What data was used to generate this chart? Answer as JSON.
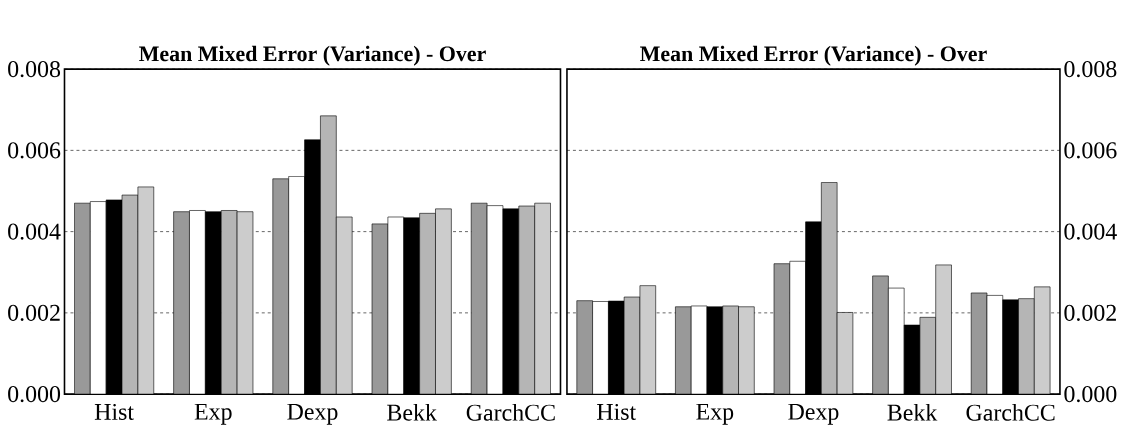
{
  "chart_data": [
    {
      "type": "bar",
      "title": "Mean Mixed Error (Variance) - Over",
      "categories": [
        "Hist",
        "Exp",
        "Dexp",
        "Bekk",
        "GarchCC"
      ],
      "series": [
        {
          "color": "#999999",
          "values": [
            0.0047,
            0.00449,
            0.0053,
            0.00419,
            0.0047
          ]
        },
        {
          "color": "#ffffff",
          "values": [
            0.00474,
            0.00452,
            0.00536,
            0.00436,
            0.00464
          ]
        },
        {
          "color": "#000000",
          "values": [
            0.00478,
            0.00449,
            0.00626,
            0.00434,
            0.00456
          ]
        },
        {
          "color": "#b5b5b5",
          "values": [
            0.0049,
            0.00452,
            0.00685,
            0.00445,
            0.00463
          ]
        },
        {
          "color": "#cccccc",
          "values": [
            0.0051,
            0.00449,
            0.00436,
            0.00456,
            0.0047
          ]
        }
      ],
      "ylim": [
        0,
        0.008
      ],
      "yticks": [
        {
          "value": 0,
          "label": "0.000"
        },
        {
          "value": 0.002,
          "label": "0.002"
        },
        {
          "value": 0.004,
          "label": "0.004"
        },
        {
          "value": 0.006,
          "label": "0.006"
        },
        {
          "value": 0.008,
          "label": "0.008"
        }
      ],
      "grid": "y"
    },
    {
      "type": "bar",
      "title": "Mean Mixed Error (Variance) - Over",
      "categories": [
        "Hist",
        "Exp",
        "Dexp",
        "Bekk",
        "GarchCC"
      ],
      "series": [
        {
          "color": "#999999",
          "values": [
            0.0023,
            0.00215,
            0.00321,
            0.00291,
            0.00249
          ]
        },
        {
          "color": "#ffffff",
          "values": [
            0.00228,
            0.00217,
            0.00327,
            0.00261,
            0.00243
          ]
        },
        {
          "color": "#000000",
          "values": [
            0.00229,
            0.00215,
            0.00424,
            0.0017,
            0.00232
          ]
        },
        {
          "color": "#b5b5b5",
          "values": [
            0.00239,
            0.00217,
            0.00521,
            0.00189,
            0.00235
          ]
        },
        {
          "color": "#cccccc",
          "values": [
            0.00267,
            0.00215,
            0.00201,
            0.00318,
            0.00264
          ]
        }
      ],
      "ylim": [
        0,
        0.008
      ],
      "yticks": [
        {
          "value": 0,
          "label": "0.000"
        },
        {
          "value": 0.002,
          "label": "0.002"
        },
        {
          "value": 0.004,
          "label": "0.004"
        },
        {
          "value": 0.006,
          "label": "0.006"
        },
        {
          "value": 0.008,
          "label": "0.008"
        }
      ],
      "grid": "y"
    }
  ]
}
